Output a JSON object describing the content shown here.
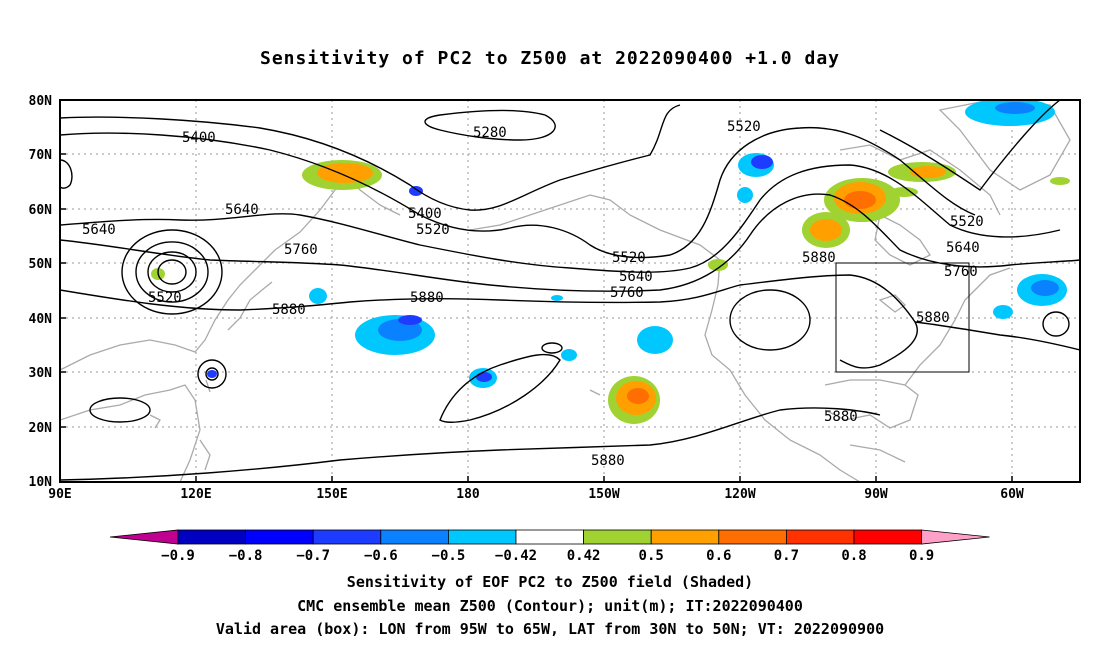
{
  "title": "Sensitivity of PC2 to Z500 at 2022090400 +1.0 day",
  "map": {
    "lat_labels": [
      "80N",
      "70N",
      "60N",
      "50N",
      "40N",
      "30N",
      "20N",
      "10N"
    ],
    "lon_labels": [
      "90E",
      "120E",
      "150E",
      "180",
      "150W",
      "120W",
      "90W",
      "60W"
    ],
    "contour_labels": [
      {
        "text": "5400",
        "id": "c1"
      },
      {
        "text": "5280",
        "id": "c2"
      },
      {
        "text": "5520",
        "id": "c3"
      },
      {
        "text": "5640",
        "id": "c4"
      },
      {
        "text": "5640",
        "id": "c5"
      },
      {
        "text": "5400",
        "id": "c6"
      },
      {
        "text": "5520",
        "id": "c7"
      },
      {
        "text": "5760",
        "id": "c8"
      },
      {
        "text": "5520",
        "id": "c9"
      },
      {
        "text": "5520",
        "id": "c10"
      },
      {
        "text": "5640",
        "id": "c11"
      },
      {
        "text": "5760",
        "id": "c12"
      },
      {
        "text": "5880",
        "id": "c13"
      },
      {
        "text": "5880",
        "id": "c14"
      },
      {
        "text": "5880",
        "id": "c15"
      },
      {
        "text": "5520",
        "id": "c16"
      },
      {
        "text": "5640",
        "id": "c17"
      },
      {
        "text": "5760",
        "id": "c18"
      },
      {
        "text": "5880",
        "id": "c19"
      },
      {
        "text": "5880",
        "id": "c20"
      },
      {
        "text": "5880",
        "id": "c21"
      }
    ],
    "valid_box": {
      "lon_from": "95W",
      "lon_to": "65W",
      "lat_from": "30N",
      "lat_to": "50N"
    }
  },
  "colorbar": {
    "labels": [
      "-0.9",
      "-0.8",
      "-0.7",
      "-0.6",
      "-0.5",
      "-0.42",
      "0.42",
      "0.5",
      "0.6",
      "0.7",
      "0.8",
      "0.9"
    ],
    "colors": [
      "#0000c0",
      "#0000ff",
      "#1e3cff",
      "#0a82ff",
      "#00c8ff",
      "#ffffff",
      "#a0d232",
      "#ffa000",
      "#ff6e00",
      "#ff3200",
      "#ff0000"
    ],
    "low_extend_color": "#c00090",
    "high_extend_color": "#ffa0c8"
  },
  "captions": {
    "line1": "Sensitivity of EOF PC2 to Z500 field (Shaded)",
    "line2": "CMC ensemble mean Z500 (Contour); unit(m); IT:2022090400",
    "line3": "Valid area (box): LON from 95W to 65W, LAT from 30N to 50N; VT: 2022090900"
  }
}
